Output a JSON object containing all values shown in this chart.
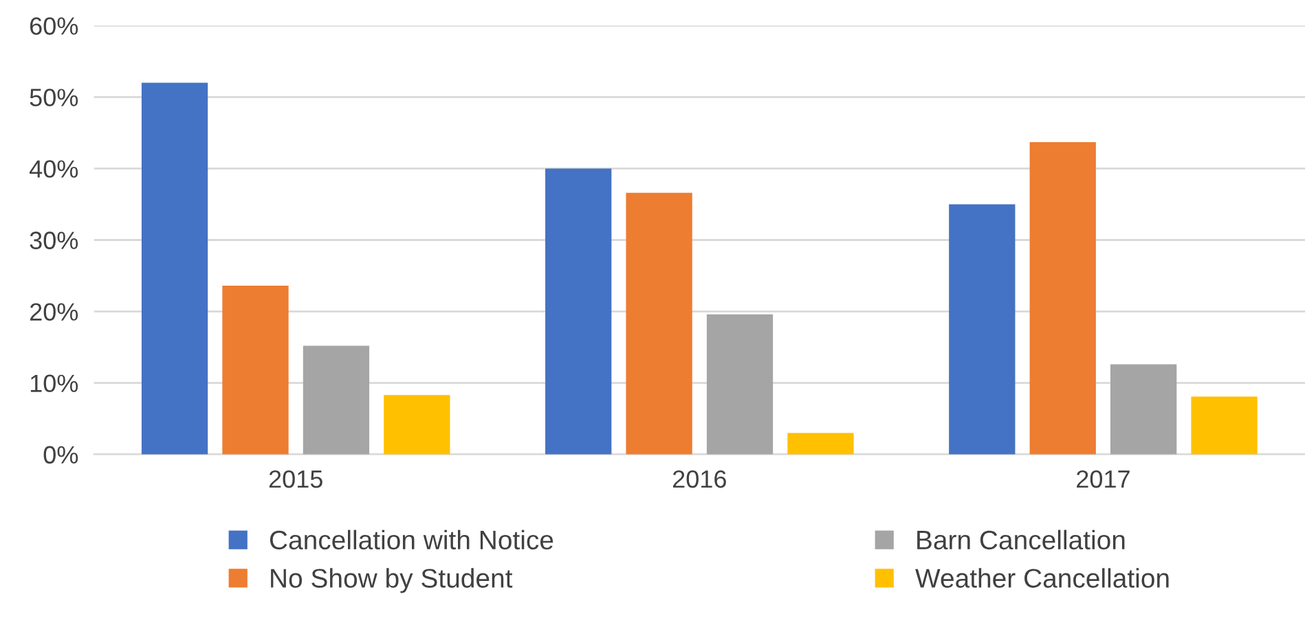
{
  "chart_data": {
    "type": "bar",
    "categories": [
      "2015",
      "2016",
      "2017"
    ],
    "series": [
      {
        "name": "Cancellation with Notice",
        "color": "#4472c4",
        "values": [
          52,
          40,
          35
        ]
      },
      {
        "name": "No Show by Student",
        "color": "#ed7d31",
        "values": [
          23.6,
          36.6,
          43.7
        ]
      },
      {
        "name": "Barn Cancellation",
        "color": "#a5a5a5",
        "values": [
          15.2,
          19.6,
          12.6
        ]
      },
      {
        "name": "Weather Cancellation",
        "color": "#ffc000",
        "values": [
          8.3,
          3,
          8.1
        ]
      }
    ],
    "ylim": [
      0,
      60
    ],
    "yticks": [
      {
        "value": 0,
        "label": "0%"
      },
      {
        "value": 10,
        "label": "10%"
      },
      {
        "value": 20,
        "label": "20%"
      },
      {
        "value": 30,
        "label": "30%"
      },
      {
        "value": 40,
        "label": "40%"
      },
      {
        "value": 50,
        "label": "50%"
      },
      {
        "value": 60,
        "label": "60%"
      }
    ],
    "grid": "y",
    "legend": "bottom"
  }
}
